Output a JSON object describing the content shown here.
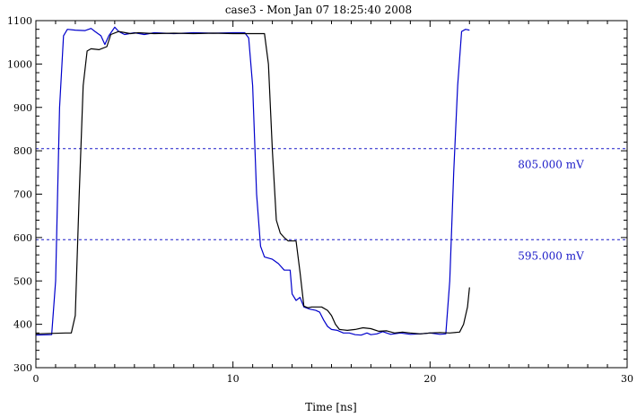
{
  "chart_data": {
    "type": "line",
    "title": "case3 - Mon Jan 07 18:25:40 2008",
    "xlabel": "Time [ns]",
    "ylabel": "",
    "xlim": [
      0,
      30
    ],
    "ylim": [
      300,
      1100
    ],
    "x_ticks": [
      0,
      10,
      20,
      30
    ],
    "y_ticks": [
      300,
      400,
      500,
      600,
      700,
      800,
      900,
      1000,
      1100
    ],
    "grid": false,
    "colors": {
      "blue": "#0000cc",
      "black": "#000000",
      "threshold": "#1a1ac8"
    },
    "thresholds": [
      {
        "value": 805,
        "label": "805.000 mV"
      },
      {
        "value": 595,
        "label": "595.000 mV"
      }
    ],
    "series": [
      {
        "color": "#0000cc",
        "points": [
          [
            0.0,
            375
          ],
          [
            0.8,
            376
          ],
          [
            1.0,
            500
          ],
          [
            1.2,
            900
          ],
          [
            1.4,
            1065
          ],
          [
            1.6,
            1080
          ],
          [
            2.0,
            1078
          ],
          [
            2.5,
            1077
          ],
          [
            2.8,
            1082
          ],
          [
            3.0,
            1075
          ],
          [
            3.3,
            1065
          ],
          [
            3.5,
            1045
          ],
          [
            3.7,
            1065
          ],
          [
            4.0,
            1085
          ],
          [
            4.2,
            1075
          ],
          [
            4.5,
            1068
          ],
          [
            5.0,
            1072
          ],
          [
            5.5,
            1068
          ],
          [
            6.0,
            1072
          ],
          [
            7.0,
            1070
          ],
          [
            8.0,
            1072
          ],
          [
            9.0,
            1071
          ],
          [
            10.0,
            1072
          ],
          [
            10.6,
            1072
          ],
          [
            10.8,
            1060
          ],
          [
            11.0,
            950
          ],
          [
            11.2,
            700
          ],
          [
            11.4,
            580
          ],
          [
            11.6,
            555
          ],
          [
            12.0,
            550
          ],
          [
            12.3,
            540
          ],
          [
            12.6,
            525
          ],
          [
            12.9,
            525
          ],
          [
            13.0,
            470
          ],
          [
            13.2,
            455
          ],
          [
            13.4,
            462
          ],
          [
            13.6,
            440
          ],
          [
            13.9,
            435
          ],
          [
            14.2,
            432
          ],
          [
            14.4,
            428
          ],
          [
            14.6,
            410
          ],
          [
            14.8,
            395
          ],
          [
            15.0,
            388
          ],
          [
            15.3,
            386
          ],
          [
            15.6,
            380
          ],
          [
            15.9,
            380
          ],
          [
            16.2,
            376
          ],
          [
            16.5,
            375
          ],
          [
            16.8,
            380
          ],
          [
            17.0,
            376
          ],
          [
            17.3,
            378
          ],
          [
            17.6,
            383
          ],
          [
            18.0,
            377
          ],
          [
            18.5,
            380
          ],
          [
            19.0,
            377
          ],
          [
            19.5,
            378
          ],
          [
            20.0,
            380
          ],
          [
            20.5,
            377
          ],
          [
            20.8,
            378
          ],
          [
            21.0,
            500
          ],
          [
            21.2,
            750
          ],
          [
            21.4,
            950
          ],
          [
            21.6,
            1075
          ],
          [
            21.8,
            1080
          ],
          [
            22.0,
            1078
          ]
        ]
      },
      {
        "color": "#000000",
        "points": [
          [
            0.0,
            378
          ],
          [
            1.5,
            380
          ],
          [
            1.8,
            380
          ],
          [
            2.0,
            420
          ],
          [
            2.2,
            700
          ],
          [
            2.4,
            950
          ],
          [
            2.6,
            1030
          ],
          [
            2.8,
            1035
          ],
          [
            3.2,
            1033
          ],
          [
            3.6,
            1040
          ],
          [
            3.8,
            1068
          ],
          [
            4.2,
            1075
          ],
          [
            4.8,
            1070
          ],
          [
            5.2,
            1072
          ],
          [
            6.0,
            1070
          ],
          [
            7.0,
            1071
          ],
          [
            8.0,
            1070
          ],
          [
            9.0,
            1071
          ],
          [
            10.0,
            1070
          ],
          [
            11.0,
            1070
          ],
          [
            11.6,
            1070
          ],
          [
            11.8,
            1000
          ],
          [
            12.0,
            800
          ],
          [
            12.2,
            640
          ],
          [
            12.4,
            610
          ],
          [
            12.6,
            600
          ],
          [
            12.8,
            592
          ],
          [
            13.2,
            592
          ],
          [
            13.4,
            520
          ],
          [
            13.6,
            442
          ],
          [
            13.8,
            438
          ],
          [
            14.0,
            440
          ],
          [
            14.5,
            440
          ],
          [
            14.8,
            432
          ],
          [
            15.0,
            420
          ],
          [
            15.2,
            400
          ],
          [
            15.4,
            388
          ],
          [
            15.8,
            386
          ],
          [
            16.2,
            388
          ],
          [
            16.6,
            392
          ],
          [
            17.0,
            390
          ],
          [
            17.4,
            384
          ],
          [
            17.8,
            385
          ],
          [
            18.2,
            380
          ],
          [
            18.6,
            382
          ],
          [
            19.0,
            380
          ],
          [
            19.5,
            378
          ],
          [
            20.0,
            380
          ],
          [
            20.5,
            381
          ],
          [
            21.0,
            380
          ],
          [
            21.5,
            382
          ],
          [
            21.7,
            400
          ],
          [
            21.9,
            440
          ],
          [
            22.0,
            485
          ]
        ]
      }
    ]
  }
}
